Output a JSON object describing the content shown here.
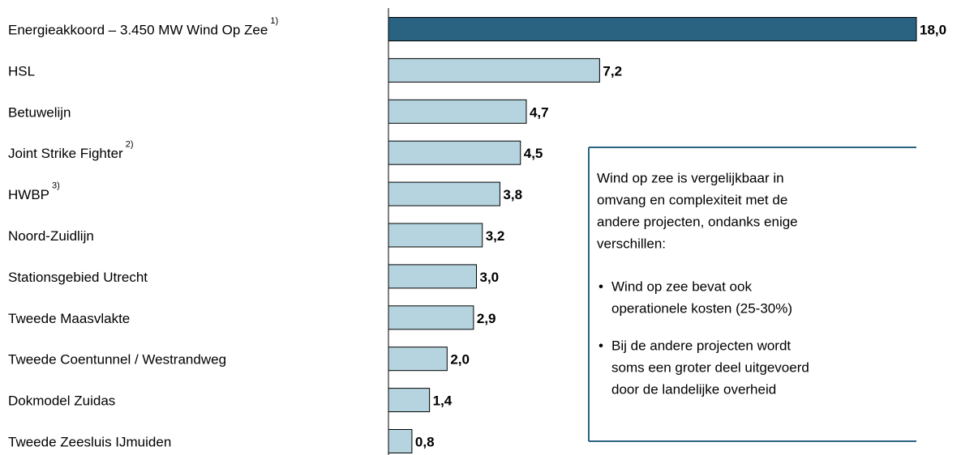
{
  "chart_data": {
    "type": "barh",
    "categories": [
      "Energieakkoord – 3.450 MW Wind Op Zee",
      "HSL",
      "Betuwelijn",
      "Joint Strike Fighter",
      "HWBP",
      "Noord-Zuidlijn",
      "Stationsgebied Utrecht",
      "Tweede Maasvlakte",
      "Tweede Coentunnel / Westrandweg",
      "Dokmodel Zuidas",
      "Tweede Zeesluis IJmuiden"
    ],
    "category_notes": [
      "1)",
      null,
      null,
      "2)",
      "3)",
      null,
      null,
      null,
      null,
      null,
      null
    ],
    "values": [
      18.0,
      7.2,
      4.7,
      4.5,
      3.8,
      3.2,
      3.0,
      2.9,
      2.0,
      1.4,
      0.8
    ],
    "value_labels": [
      "18,0",
      "7,2",
      "4,7",
      "4,5",
      "3,8",
      "3,2",
      "3,0",
      "2,9",
      "2,0",
      "1,4",
      "0,8"
    ],
    "colors": [
      "#2a6381",
      "#b5d4df",
      "#b5d4df",
      "#b5d4df",
      "#b5d4df",
      "#b5d4df",
      "#b5d4df",
      "#b5d4df",
      "#b5d4df",
      "#b5d4df",
      "#b5d4df"
    ],
    "xlim": [
      0,
      18
    ],
    "annotation": {
      "paragraph": [
        "Wind op zee is vergelijkbaar in",
        "omvang en complexiteit met de",
        "andere projecten, ondanks enige",
        "verschillen:"
      ],
      "bullets": [
        [
          "Wind op zee bevat ook",
          "operationele kosten (25-30%)"
        ],
        [
          "Bij de andere projecten wordt",
          "soms een groter deel uitgevoerd",
          "door de landelijke overheid"
        ]
      ]
    }
  }
}
